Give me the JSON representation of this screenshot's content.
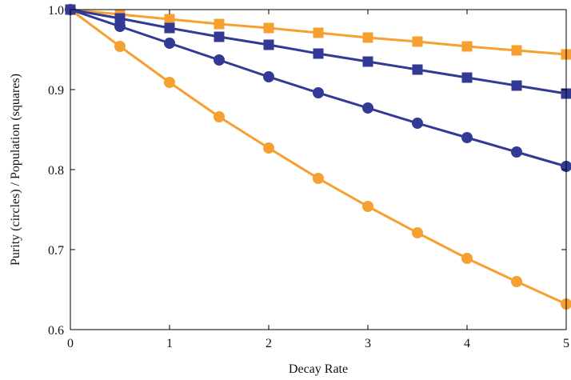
{
  "chart_data": {
    "type": "line",
    "xlabel": "Decay Rate",
    "ylabel": "Purity (circles) / Population (squares)",
    "xlim": [
      0,
      5
    ],
    "ylim": [
      0.6,
      1.0
    ],
    "xticks": [
      0,
      1,
      2,
      3,
      4,
      5
    ],
    "yticks": [
      0.6,
      0.7,
      0.8,
      0.9,
      1.0
    ],
    "xtick_labels": [
      "0",
      "1",
      "2",
      "3",
      "4",
      "5"
    ],
    "ytick_labels": [
      "0.6",
      "0.7",
      "0.8",
      "0.9",
      "1.0"
    ],
    "grid": false,
    "x": [
      0,
      0.5,
      1,
      1.5,
      2,
      2.5,
      3,
      3.5,
      4,
      4.5,
      5
    ],
    "series": [
      {
        "marker": "circle",
        "color": "#f5a030",
        "values": [
          1.0,
          0.954,
          0.909,
          0.866,
          0.827,
          0.789,
          0.754,
          0.721,
          0.689,
          0.66,
          0.632
        ]
      },
      {
        "marker": "circle",
        "color": "#323a96",
        "values": [
          1.0,
          0.979,
          0.958,
          0.937,
          0.916,
          0.896,
          0.877,
          0.858,
          0.84,
          0.822,
          0.804
        ]
      },
      {
        "marker": "square",
        "color": "#f5a030",
        "values": [
          1.0,
          0.994,
          0.988,
          0.982,
          0.977,
          0.971,
          0.965,
          0.96,
          0.954,
          0.949,
          0.944
        ]
      },
      {
        "marker": "square",
        "color": "#323a96",
        "values": [
          1.0,
          0.989,
          0.977,
          0.966,
          0.956,
          0.945,
          0.935,
          0.925,
          0.915,
          0.905,
          0.895
        ]
      }
    ]
  }
}
